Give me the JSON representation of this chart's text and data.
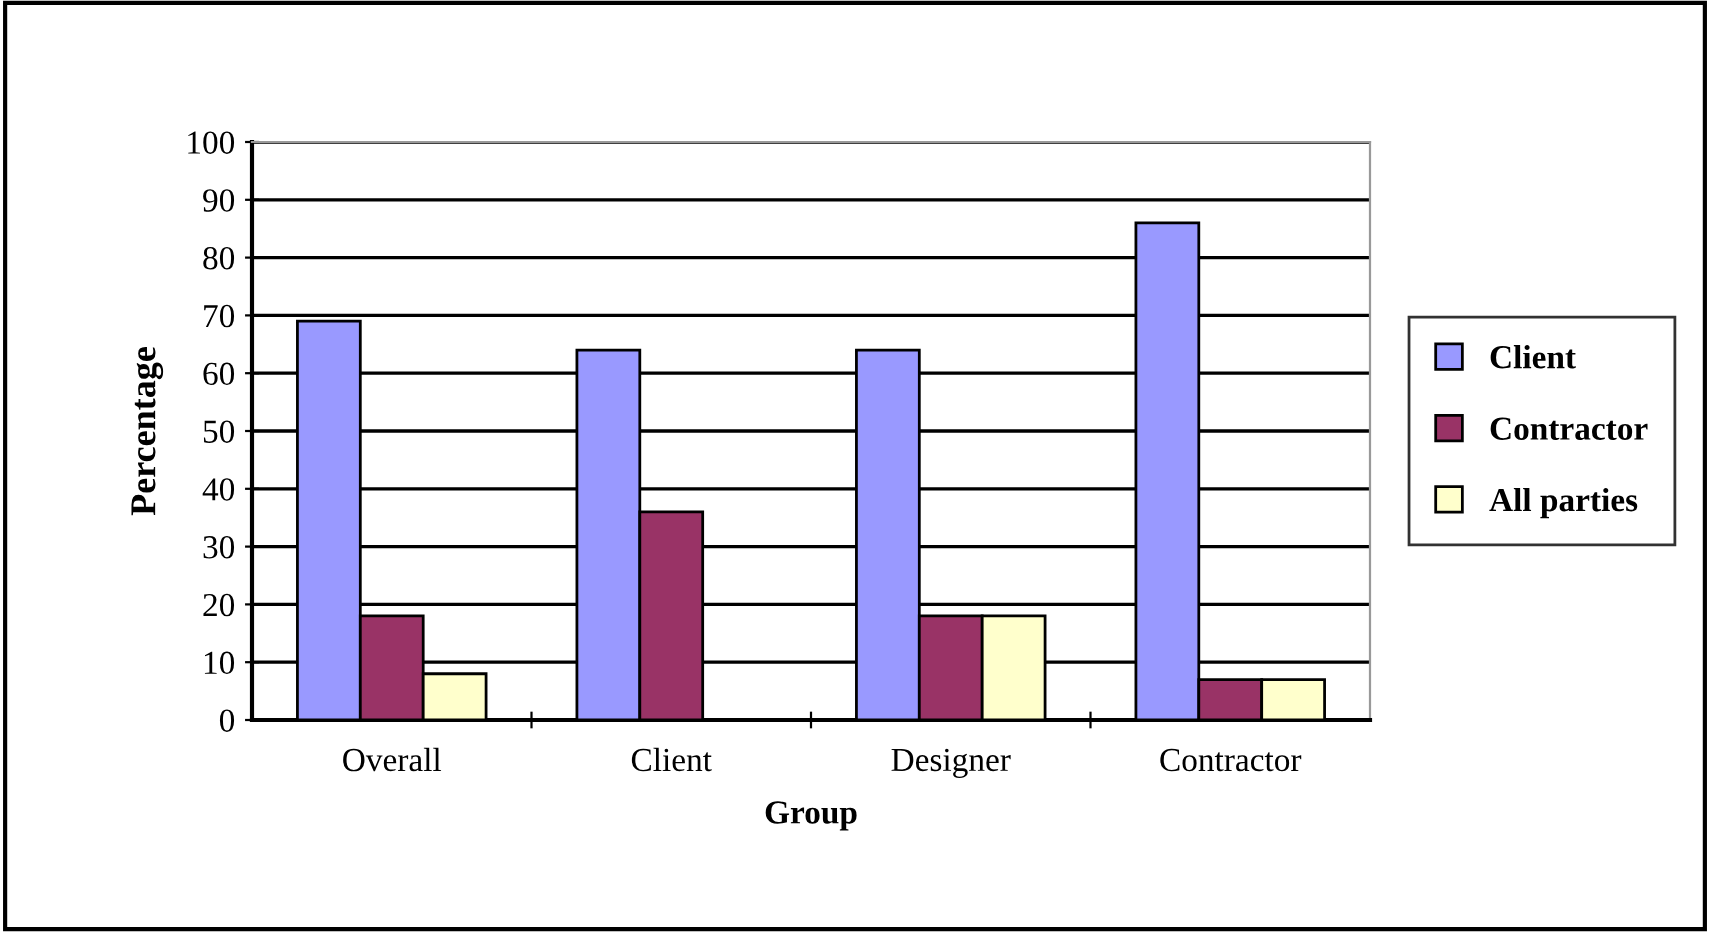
{
  "chart_data": {
    "type": "bar",
    "xlabel": "Group",
    "ylabel": "Percentage",
    "categories": [
      "Overall",
      "Client",
      "Designer",
      "Contractor"
    ],
    "series": [
      {
        "name": "Client",
        "color": "#9999ff",
        "values": [
          69,
          64,
          64,
          86
        ]
      },
      {
        "name": "Contractor",
        "color": "#993366",
        "values": [
          18,
          36,
          18,
          7
        ]
      },
      {
        "name": "All parties",
        "color": "#ffffcc",
        "values": [
          8,
          null,
          18,
          7
        ]
      }
    ],
    "ylim": [
      0,
      100
    ],
    "yticks": [
      0,
      10,
      20,
      30,
      40,
      50,
      60,
      70,
      80,
      90,
      100
    ],
    "grid": "y",
    "legend": "right"
  }
}
